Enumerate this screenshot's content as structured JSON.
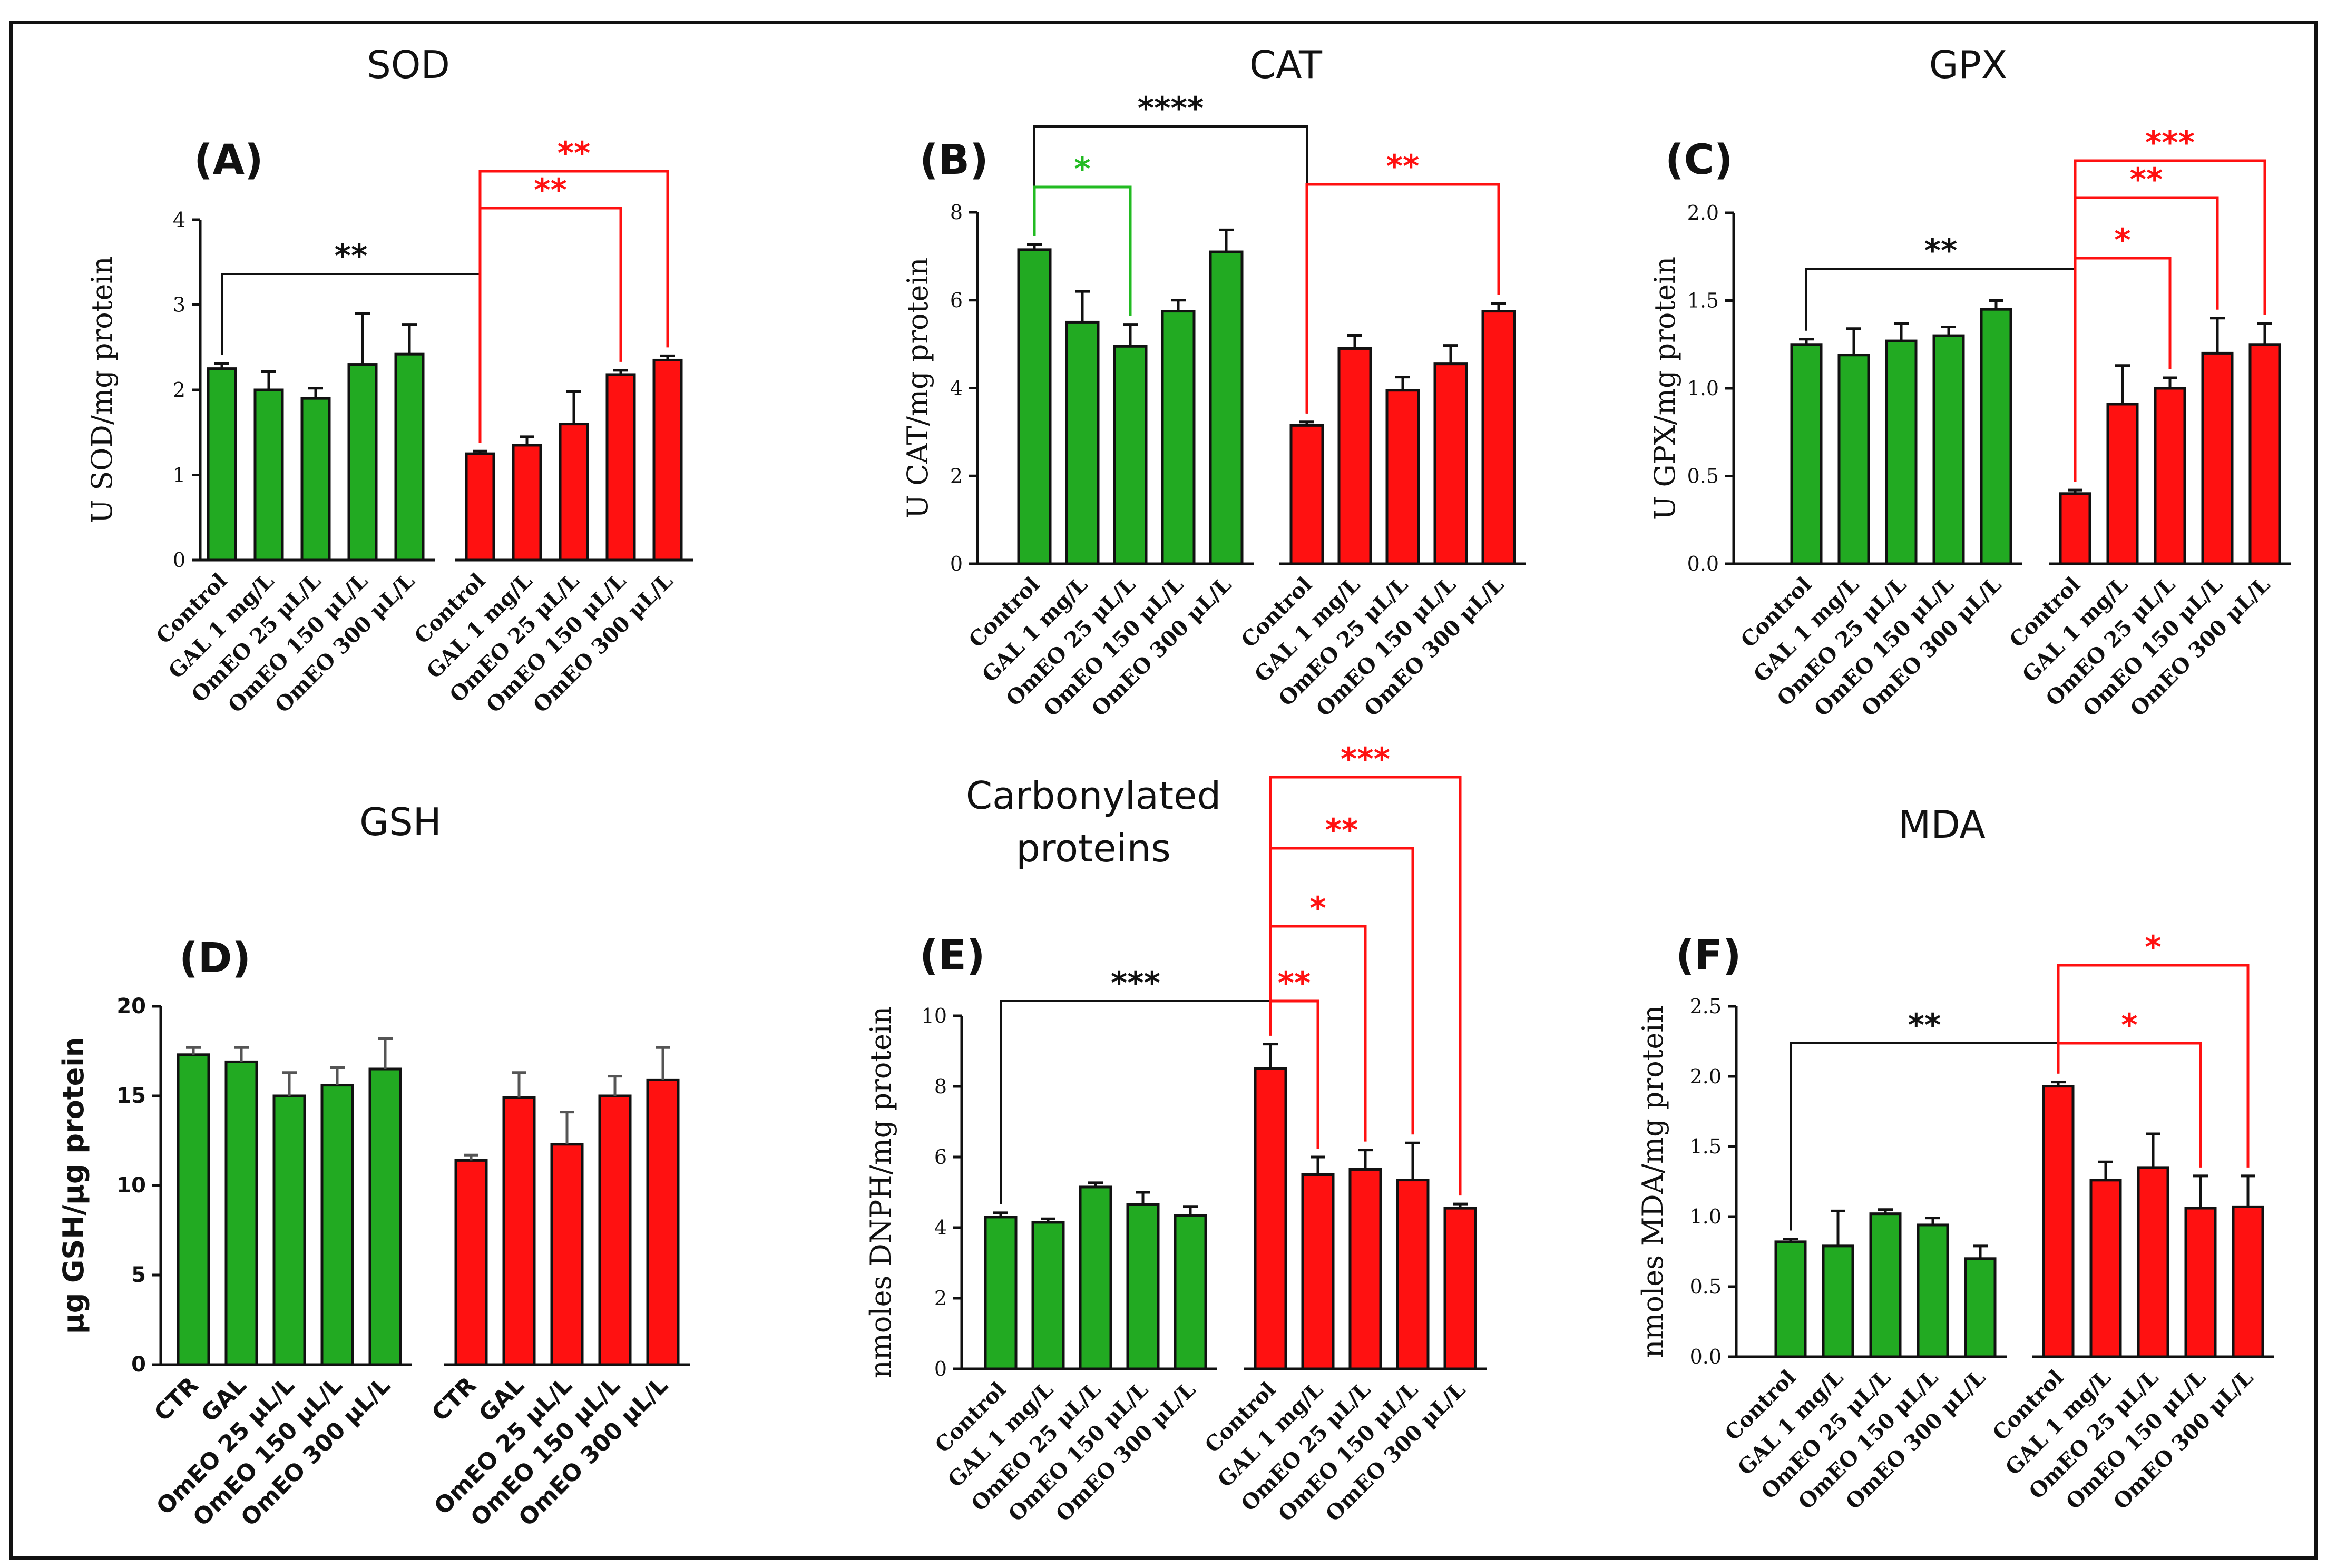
{
  "chart_data": [
    {
      "id": "A",
      "type": "bar",
      "title": "SOD",
      "panel_label": "(A)",
      "ylabel": "U SOD/mg protein",
      "ylim": [
        0,
        4
      ],
      "yticks": [
        "0",
        "1",
        "2",
        "3",
        "4"
      ],
      "categories": [
        "Control",
        "GAL 1 mg/L",
        "OmEO 25 μL/L",
        "OmEO 150 μL/L",
        "OmEO 300 μL/L"
      ],
      "series": [
        {
          "name": "group1",
          "color": "#22aa22",
          "values": [
            2.25,
            2.0,
            1.9,
            2.3,
            2.42
          ],
          "errors": [
            0.06,
            0.22,
            0.12,
            0.6,
            0.35
          ]
        },
        {
          "name": "group2",
          "color": "#ff1111",
          "values": [
            1.25,
            1.35,
            1.6,
            2.18,
            2.35
          ],
          "errors": [
            0.03,
            0.1,
            0.38,
            0.05,
            0.05
          ]
        }
      ],
      "significance": [
        {
          "from": [
            0,
            0
          ],
          "to": [
            1,
            0
          ],
          "label": "**",
          "color": "#111111"
        },
        {
          "from": [
            1,
            0
          ],
          "to": [
            1,
            3
          ],
          "label": "**",
          "color": "#ff1111"
        },
        {
          "from": [
            1,
            0
          ],
          "to": [
            1,
            4
          ],
          "label": "**",
          "color": "#ff1111"
        }
      ]
    },
    {
      "id": "B",
      "type": "bar",
      "title": "CAT",
      "panel_label": "(B)",
      "ylabel": "U CAT/mg protein",
      "ylim": [
        0,
        8
      ],
      "yticks": [
        "0",
        "2",
        "4",
        "6",
        "8"
      ],
      "categories": [
        "Control",
        "GAL 1 mg/L",
        "OmEO 25 μL/L",
        "OmEO 150 μL/L",
        "OmEO 300 μL/L"
      ],
      "series": [
        {
          "name": "group1",
          "color": "#22aa22",
          "values": [
            7.15,
            5.5,
            4.95,
            5.75,
            7.1
          ],
          "errors": [
            0.12,
            0.7,
            0.5,
            0.25,
            0.5
          ]
        },
        {
          "name": "group2",
          "color": "#ff1111",
          "values": [
            3.15,
            4.9,
            3.95,
            4.55,
            5.75
          ],
          "errors": [
            0.08,
            0.3,
            0.3,
            0.42,
            0.18
          ]
        }
      ],
      "significance": [
        {
          "from": [
            0,
            0
          ],
          "to": [
            1,
            0
          ],
          "label": "****",
          "color": "#111111"
        },
        {
          "from": [
            0,
            0
          ],
          "to": [
            0,
            2
          ],
          "label": "*",
          "color": "#22bb22"
        },
        {
          "from": [
            1,
            0
          ],
          "to": [
            1,
            4
          ],
          "label": "**",
          "color": "#ff1111"
        }
      ]
    },
    {
      "id": "C",
      "type": "bar",
      "title": "GPX",
      "panel_label": "(C)",
      "ylabel": "U GPX/mg protein",
      "ylim": [
        0,
        2
      ],
      "yticks": [
        "0.0",
        "0.5",
        "1.0",
        "1.5",
        "2.0"
      ],
      "categories": [
        "Control",
        "GAL 1 mg/L",
        "OmEO 25 μL/L",
        "OmEO 150 μL/L",
        "OmEO 300 μL/L"
      ],
      "series": [
        {
          "name": "group1",
          "color": "#22aa22",
          "values": [
            1.25,
            1.19,
            1.27,
            1.3,
            1.45
          ],
          "errors": [
            0.03,
            0.15,
            0.1,
            0.05,
            0.05
          ]
        },
        {
          "name": "group2",
          "color": "#ff1111",
          "values": [
            0.4,
            0.91,
            1.0,
            1.2,
            1.25
          ],
          "errors": [
            0.02,
            0.22,
            0.06,
            0.2,
            0.12
          ]
        }
      ],
      "significance": [
        {
          "from": [
            0,
            0
          ],
          "to": [
            1,
            0
          ],
          "label": "**",
          "color": "#111111"
        },
        {
          "from": [
            1,
            0
          ],
          "to": [
            1,
            2
          ],
          "label": "*",
          "color": "#ff1111"
        },
        {
          "from": [
            1,
            0
          ],
          "to": [
            1,
            3
          ],
          "label": "**",
          "color": "#ff1111"
        },
        {
          "from": [
            1,
            0
          ],
          "to": [
            1,
            4
          ],
          "label": "***",
          "color": "#ff1111"
        }
      ]
    },
    {
      "id": "D",
      "type": "bar",
      "title": "GSH",
      "panel_label": "(D)",
      "ylabel": "μg GSH/μg protein",
      "ylim": [
        0,
        20
      ],
      "yticks": [
        "0",
        "5",
        "10",
        "15",
        "20"
      ],
      "categories": [
        "CTR",
        "GAL",
        "OmEO 25 μL/L",
        "OmEO 150 μL/L",
        "OmEO 300 μL/L"
      ],
      "series": [
        {
          "name": "group1",
          "color": "#22aa22",
          "values": [
            17.3,
            16.9,
            15.0,
            15.6,
            16.5
          ],
          "errors": [
            0.4,
            0.8,
            1.3,
            1.0,
            1.7
          ]
        },
        {
          "name": "group2",
          "color": "#ff1111",
          "values": [
            11.4,
            14.9,
            12.3,
            15.0,
            15.9
          ],
          "errors": [
            0.3,
            1.4,
            1.8,
            1.1,
            1.8
          ]
        }
      ],
      "significance": []
    },
    {
      "id": "E",
      "type": "bar",
      "title": "Carbonylated proteins",
      "panel_label": "(E)",
      "ylabel": "nmoles DNPH/mg protein",
      "ylim": [
        0,
        10
      ],
      "yticks": [
        "0",
        "2",
        "4",
        "6",
        "8",
        "10"
      ],
      "categories": [
        "Control",
        "GAL 1 mg/L",
        "OmEO 25 μL/L",
        "OmEO 150 μL/L",
        "OmEO 300 μL/L"
      ],
      "series": [
        {
          "name": "group1",
          "color": "#22aa22",
          "values": [
            4.3,
            4.15,
            5.15,
            4.65,
            4.35
          ],
          "errors": [
            0.12,
            0.1,
            0.12,
            0.35,
            0.25
          ]
        },
        {
          "name": "group2",
          "color": "#ff1111",
          "values": [
            8.5,
            5.5,
            5.65,
            5.35,
            4.55
          ],
          "errors": [
            0.7,
            0.5,
            0.55,
            1.05,
            0.12
          ]
        }
      ],
      "significance": [
        {
          "from": [
            0,
            0
          ],
          "to": [
            1,
            0
          ],
          "label": "***",
          "color": "#111111"
        },
        {
          "from": [
            1,
            0
          ],
          "to": [
            1,
            1
          ],
          "label": "**",
          "color": "#ff1111"
        },
        {
          "from": [
            1,
            0
          ],
          "to": [
            1,
            2
          ],
          "label": "*",
          "color": "#ff1111"
        },
        {
          "from": [
            1,
            0
          ],
          "to": [
            1,
            3
          ],
          "label": "**",
          "color": "#ff1111"
        },
        {
          "from": [
            1,
            0
          ],
          "to": [
            1,
            4
          ],
          "label": "***",
          "color": "#ff1111"
        }
      ]
    },
    {
      "id": "F",
      "type": "bar",
      "title": "MDA",
      "panel_label": "(F)",
      "ylabel": "nmoles MDA/mg protein",
      "ylim": [
        0,
        2.5
      ],
      "yticks": [
        "0.0",
        "0.5",
        "1.0",
        "1.5",
        "2.0",
        "2.5"
      ],
      "categories": [
        "Control",
        "GAL 1 mg/L",
        "OmEO 25 μL/L",
        "OmEO 150 μL/L",
        "OmEO 300 μL/L"
      ],
      "series": [
        {
          "name": "group1",
          "color": "#22aa22",
          "values": [
            0.82,
            0.79,
            1.02,
            0.94,
            0.7
          ],
          "errors": [
            0.02,
            0.25,
            0.03,
            0.05,
            0.09
          ]
        },
        {
          "name": "group2",
          "color": "#ff1111",
          "values": [
            1.93,
            1.26,
            1.35,
            1.06,
            1.07
          ],
          "errors": [
            0.03,
            0.13,
            0.24,
            0.23,
            0.22
          ]
        }
      ],
      "significance": [
        {
          "from": [
            0,
            0
          ],
          "to": [
            1,
            0
          ],
          "label": "**",
          "color": "#111111"
        },
        {
          "from": [
            1,
            0
          ],
          "to": [
            1,
            3
          ],
          "label": "*",
          "color": "#ff1111"
        },
        {
          "from": [
            1,
            0
          ],
          "to": [
            1,
            4
          ],
          "label": "*",
          "color": "#ff1111"
        }
      ]
    }
  ]
}
